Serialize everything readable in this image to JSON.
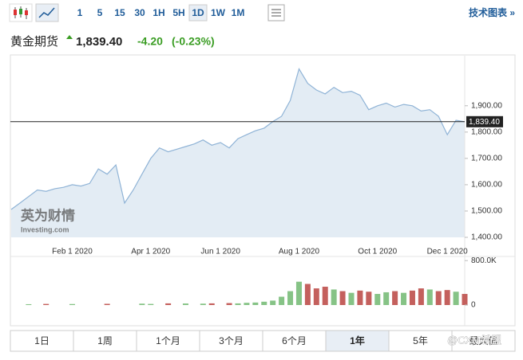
{
  "toolbar": {
    "intervals": [
      "1",
      "5",
      "15",
      "30",
      "1H",
      "5H",
      "1D",
      "1W",
      "1M"
    ],
    "selected": 6,
    "link": "技术图表 »"
  },
  "header": {
    "name": "黄金期货",
    "price": "1,839.40",
    "change": "-4.20",
    "change_pct": "(-0.23%)"
  },
  "watermark": {
    "brand": "英为财情",
    "site": "Investing.com",
    "overlay": "@CXM希盟"
  },
  "chart_data": [
    {
      "type": "area",
      "categories": [
        null,
        null,
        null,
        null,
        null,
        null,
        null,
        "Feb 1 2020",
        null,
        null,
        null,
        null,
        null,
        null,
        null,
        null,
        "Apr 1 2020",
        null,
        null,
        null,
        null,
        null,
        null,
        null,
        "Jun 1 2020",
        null,
        null,
        null,
        null,
        null,
        null,
        null,
        null,
        "Aug 1 2020",
        null,
        null,
        null,
        null,
        null,
        null,
        null,
        null,
        "Oct 1 2020",
        null,
        null,
        null,
        null,
        null,
        null,
        null,
        "Dec 1 2020",
        null,
        null
      ],
      "series": [
        {
          "name": "黄金期货",
          "color": "#8fb3d6",
          "fill": "#e3ecf4",
          "values": [
            1506,
            1530,
            1555,
            1580,
            1575,
            1585,
            1590,
            1600,
            1595,
            1605,
            1660,
            1640,
            1675,
            1530,
            1580,
            1640,
            1700,
            1740,
            1725,
            1735,
            1745,
            1755,
            1770,
            1750,
            1760,
            1740,
            1775,
            1790,
            1805,
            1815,
            1840,
            1860,
            1920,
            2040,
            1985,
            1960,
            1945,
            1970,
            1950,
            1955,
            1940,
            1885,
            1900,
            1910,
            1895,
            1905,
            1900,
            1880,
            1885,
            1860,
            1790,
            1845,
            1839.4
          ]
        }
      ],
      "ylim": [
        1400,
        2090
      ],
      "yticks": [
        {
          "value": 1400,
          "label": "1,400.00"
        },
        {
          "value": 1500,
          "label": "1,500.00"
        },
        {
          "value": 1600,
          "label": "1,600.00"
        },
        {
          "value": 1700,
          "label": "1,700.00"
        },
        {
          "value": 1800,
          "label": "1,800.00"
        },
        {
          "value": 1900,
          "label": "1,900.00"
        }
      ],
      "last_price": {
        "value": 1839.4,
        "label": "1,839.40"
      }
    },
    {
      "type": "bar",
      "values": [
        0,
        0,
        15000,
        0,
        20000,
        0,
        0,
        18000,
        0,
        0,
        0,
        22000,
        0,
        0,
        0,
        25000,
        20000,
        0,
        30000,
        0,
        28000,
        0,
        25000,
        30000,
        0,
        35000,
        30000,
        40000,
        45000,
        60000,
        80000,
        150000,
        250000,
        420000,
        380000,
        300000,
        330000,
        280000,
        250000,
        220000,
        260000,
        240000,
        200000,
        230000,
        250000,
        220000,
        260000,
        300000,
        280000,
        250000,
        270000,
        240000,
        200000
      ],
      "up_color": "#86c386",
      "down_color": "#c4605d",
      "ylim": [
        0,
        860000
      ],
      "yticks": [
        0,
        {
          "value": 800000,
          "label": "800.0K"
        }
      ]
    }
  ],
  "tabs": {
    "labels": [
      "1日",
      "1周",
      "1个月",
      "3个月",
      "6个月",
      "1年",
      "5年",
      "最大值"
    ],
    "selected": 5
  }
}
